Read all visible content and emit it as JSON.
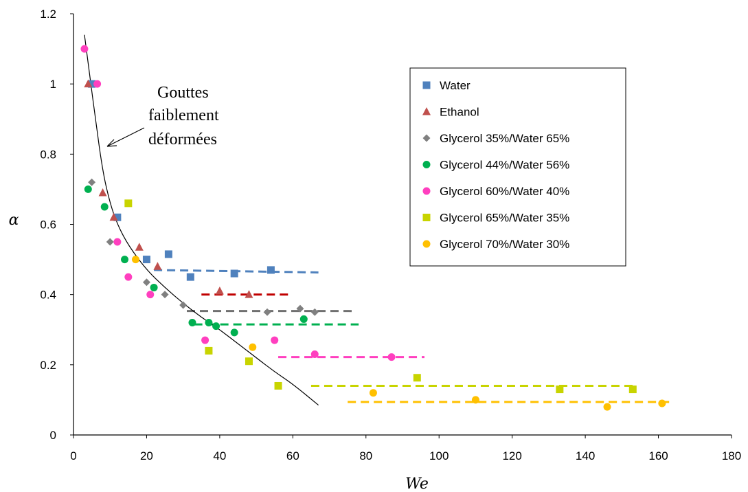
{
  "chart_data": {
    "type": "scatter",
    "xlabel": "We",
    "ylabel": "α",
    "xlim": [
      0,
      180
    ],
    "ylim": [
      0,
      1.2
    ],
    "x_ticks": [
      "0",
      "20",
      "40",
      "60",
      "80",
      "100",
      "120",
      "140",
      "160",
      "180"
    ],
    "y_ticks": [
      "0",
      "0.2",
      "0.4",
      "0.6",
      "0.8",
      "1",
      "1.2"
    ],
    "grid": false,
    "legend_position": "top-right",
    "annotation": {
      "lines": [
        "Gouttes",
        "faiblement",
        "déformées"
      ]
    },
    "fit_curve": {
      "color": "#000000",
      "points": [
        [
          3,
          1.14
        ],
        [
          4.5,
          1.02
        ],
        [
          6,
          0.9
        ],
        [
          8,
          0.75
        ],
        [
          10,
          0.66
        ],
        [
          12,
          0.6
        ],
        [
          15,
          0.54
        ],
        [
          20,
          0.47
        ],
        [
          25,
          0.42
        ],
        [
          30,
          0.375
        ],
        [
          35,
          0.335
        ],
        [
          40,
          0.3
        ],
        [
          45,
          0.26
        ],
        [
          50,
          0.22
        ],
        [
          55,
          0.18
        ],
        [
          60,
          0.145
        ],
        [
          67,
          0.085
        ]
      ]
    },
    "series": [
      {
        "name": "Water",
        "marker": "square",
        "color": "#4f81bd",
        "points": [
          [
            5,
            1.0
          ],
          [
            12,
            0.62
          ],
          [
            20,
            0.5
          ],
          [
            26,
            0.515
          ],
          [
            32,
            0.45
          ],
          [
            44,
            0.46
          ],
          [
            54,
            0.47
          ]
        ],
        "plateau": {
          "x": [
            22,
            67
          ],
          "y": [
            0.47,
            0.463
          ],
          "color": "#4f81bd"
        }
      },
      {
        "name": "Ethanol",
        "marker": "triangle",
        "color": "#c0504d",
        "points": [
          [
            4,
            1.0
          ],
          [
            8,
            0.69
          ],
          [
            11,
            0.62
          ],
          [
            18,
            0.535
          ],
          [
            23,
            0.48
          ],
          [
            40,
            0.41
          ],
          [
            48,
            0.4
          ]
        ],
        "plateau": {
          "x": [
            35,
            59
          ],
          "y": [
            0.4,
            0.4
          ],
          "color": "#c00000"
        }
      },
      {
        "name": "Glycerol 35%/Water 65%",
        "marker": "diamond",
        "color": "#808080",
        "points": [
          [
            5,
            0.72
          ],
          [
            10,
            0.55
          ],
          [
            20,
            0.435
          ],
          [
            25,
            0.4
          ],
          [
            30,
            0.37
          ],
          [
            53,
            0.35
          ],
          [
            62,
            0.36
          ],
          [
            66,
            0.35
          ]
        ],
        "plateau": {
          "x": [
            31,
            77
          ],
          "y": [
            0.353,
            0.353
          ],
          "color": "#707070"
        }
      },
      {
        "name": "Glycerol 44%/Water 56%",
        "marker": "circle",
        "color": "#00b050",
        "points": [
          [
            4,
            0.7
          ],
          [
            8.5,
            0.65
          ],
          [
            14,
            0.5
          ],
          [
            22,
            0.42
          ],
          [
            32.5,
            0.32
          ],
          [
            37,
            0.32
          ],
          [
            39,
            0.31
          ],
          [
            44,
            0.292
          ],
          [
            63,
            0.33
          ]
        ],
        "plateau": {
          "x": [
            33,
            78
          ],
          "y": [
            0.315,
            0.315
          ],
          "color": "#00b050"
        }
      },
      {
        "name": "Glycerol 60%/Water 40%",
        "marker": "circle",
        "color": "#ff3fbf",
        "points": [
          [
            3,
            1.1
          ],
          [
            6.5,
            1.0
          ],
          [
            12,
            0.55
          ],
          [
            15,
            0.45
          ],
          [
            21,
            0.4
          ],
          [
            36,
            0.27
          ],
          [
            55,
            0.27
          ],
          [
            66,
            0.23
          ],
          [
            87,
            0.222
          ]
        ],
        "plateau": {
          "x": [
            56,
            96
          ],
          "y": [
            0.222,
            0.222
          ],
          "color": "#ff3fbf"
        }
      },
      {
        "name": "Glycerol 65%/Water 35%",
        "marker": "square",
        "color": "#c8d400",
        "points": [
          [
            15,
            0.66
          ],
          [
            37,
            0.24
          ],
          [
            48,
            0.21
          ],
          [
            56,
            0.14
          ],
          [
            94,
            0.163
          ],
          [
            133,
            0.13
          ],
          [
            153,
            0.13
          ]
        ],
        "plateau": {
          "x": [
            65,
            153
          ],
          "y": [
            0.14,
            0.14
          ],
          "color": "#c8d400"
        }
      },
      {
        "name": "Glycerol 70%/Water 30%",
        "marker": "circle",
        "color": "#ffc000",
        "points": [
          [
            17,
            0.5
          ],
          [
            49,
            0.25
          ],
          [
            82,
            0.12
          ],
          [
            110,
            0.1
          ],
          [
            146,
            0.08
          ],
          [
            161,
            0.09
          ]
        ],
        "plateau": {
          "x": [
            75,
            163
          ],
          "y": [
            0.094,
            0.094
          ],
          "color": "#ffc000"
        }
      }
    ]
  }
}
